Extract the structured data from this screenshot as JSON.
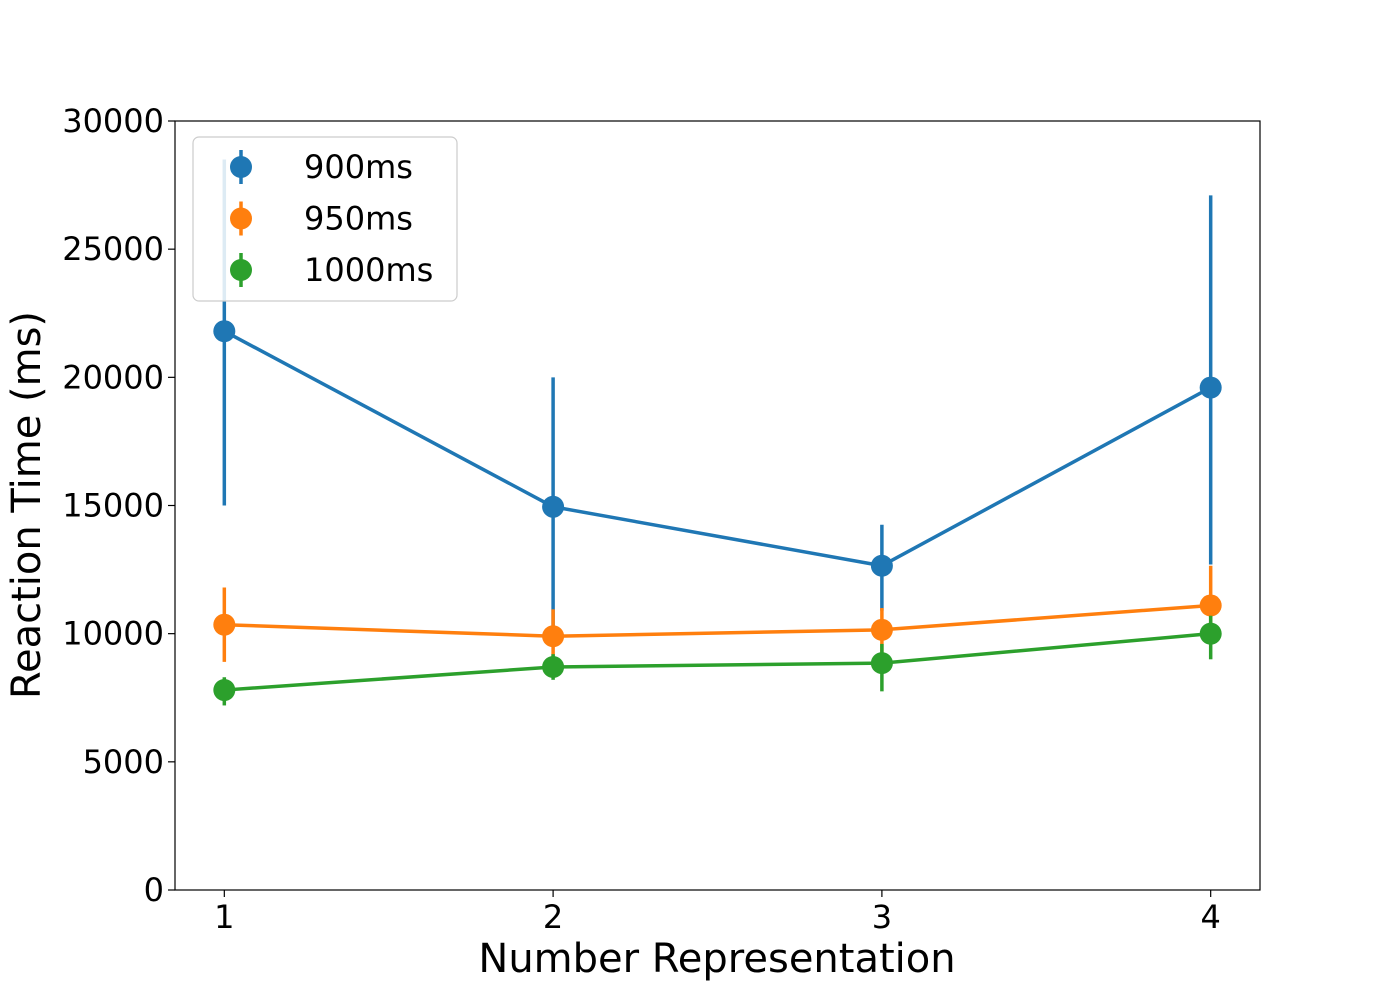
{
  "chart_data": {
    "type": "line",
    "title": "",
    "xlabel": "Number Representation",
    "ylabel": "Reaction Time (ms)",
    "x": [
      1,
      2,
      3,
      4
    ],
    "x_ticks": [
      "1",
      "2",
      "3",
      "4"
    ],
    "xlim": [
      0.85,
      4.15
    ],
    "ylim": [
      0,
      30000
    ],
    "y_ticks": [
      0,
      5000,
      10000,
      15000,
      20000,
      25000,
      30000
    ],
    "y_tick_labels": [
      "0",
      "5000",
      "10000",
      "15000",
      "20000",
      "25000",
      "30000"
    ],
    "grid": false,
    "legend_position": "upper-left",
    "error_bars": true,
    "series": [
      {
        "name": "900ms",
        "color": "#1f77b4",
        "values": [
          21800,
          14950,
          12650,
          19600
        ],
        "error_low": [
          15000,
          10000,
          10900,
          12700
        ],
        "error_high": [
          28500,
          20000,
          14250,
          27100
        ]
      },
      {
        "name": "950ms",
        "color": "#ff7f0e",
        "values": [
          10350,
          9900,
          10150,
          11100
        ],
        "error_low": [
          8900,
          9000,
          9200,
          9700
        ],
        "error_high": [
          11800,
          10950,
          11000,
          12650
        ]
      },
      {
        "name": "1000ms",
        "color": "#2ca02c",
        "values": [
          7800,
          8700,
          8850,
          10000
        ],
        "error_low": [
          7200,
          8200,
          7750,
          9000
        ],
        "error_high": [
          8300,
          9200,
          9600,
          10700
        ]
      }
    ]
  }
}
